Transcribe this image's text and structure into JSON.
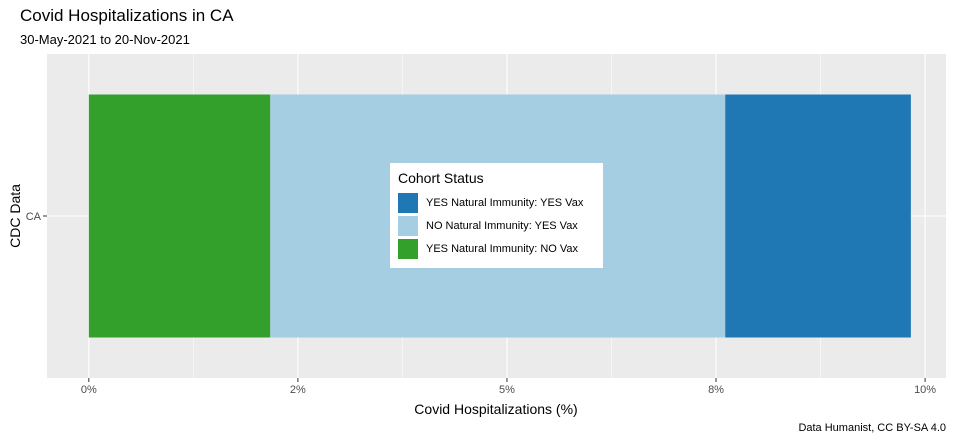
{
  "chart_data": {
    "type": "bar",
    "orientation": "horizontal",
    "stacked": true,
    "title": "Covid Hospitalizations in CA",
    "subtitle": "30-May-2021 to 20-Nov-2021",
    "xlabel": "Covid Hospitalizations (%)",
    "ylabel": "CDC Data",
    "caption": "Data Humanist, CC BY-SA 4.0",
    "categories": [
      "CA"
    ],
    "xlim": [
      -0.5,
      10.25
    ],
    "x_ticks": [
      0,
      2.5,
      5,
      7.5,
      10
    ],
    "x_tick_labels": [
      "0%",
      "2%",
      "5%",
      "8%",
      "10%"
    ],
    "grid": true,
    "legend_title": "Cohort Status",
    "legend_position": "center",
    "legend_order": [
      "YES Natural Immunity: YES Vax",
      "NO Natural Immunity: YES Vax",
      "YES Natural Immunity: NO Vax"
    ],
    "series": [
      {
        "name": "YES Natural Immunity: NO Vax",
        "values": [
          2.17
        ],
        "color": "#33a02c"
      },
      {
        "name": "NO Natural Immunity: YES Vax",
        "values": [
          5.44
        ],
        "color": "#a6cee3"
      },
      {
        "name": "YES Natural Immunity: YES Vax",
        "values": [
          2.22
        ],
        "color": "#1f78b4"
      }
    ]
  }
}
